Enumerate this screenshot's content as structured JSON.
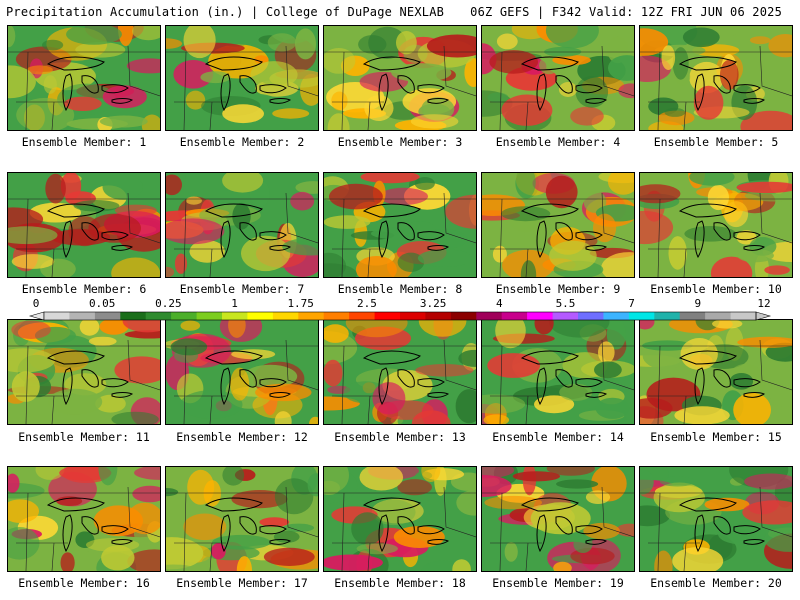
{
  "header": {
    "left": "Precipitation Accumulation (in.) | College of DuPage NEXLAB",
    "right": "06Z GEFS | F342 Valid: 12Z FRI JUN 06 2025"
  },
  "panels": [
    {
      "label": "Ensemble Member: 1"
    },
    {
      "label": "Ensemble Member: 2"
    },
    {
      "label": "Ensemble Member: 3"
    },
    {
      "label": "Ensemble Member: 4"
    },
    {
      "label": "Ensemble Member: 5"
    },
    {
      "label": "Ensemble Member: 6"
    },
    {
      "label": "Ensemble Member: 7"
    },
    {
      "label": "Ensemble Member: 8"
    },
    {
      "label": "Ensemble Member: 9"
    },
    {
      "label": "Ensemble Member: 10"
    },
    {
      "label": "Ensemble Member: 11"
    },
    {
      "label": "Ensemble Member: 12"
    },
    {
      "label": "Ensemble Member: 13"
    },
    {
      "label": "Ensemble Member: 14"
    },
    {
      "label": "Ensemble Member: 15"
    },
    {
      "label": "Ensemble Member: 16"
    },
    {
      "label": "Ensemble Member: 17"
    },
    {
      "label": "Ensemble Member: 18"
    },
    {
      "label": "Ensemble Member: 19"
    },
    {
      "label": "Ensemble Member: 20"
    }
  ],
  "legend": {
    "ticks": [
      "0",
      "0.05",
      "0.25",
      "1",
      "1.75",
      "2.5",
      "3.25",
      "4",
      "5.5",
      "7",
      "9",
      "12"
    ],
    "colors": [
      "#d8d8d8",
      "#b4b4b4",
      "#8c8c8c",
      "#1a6e1a",
      "#2e8b2e",
      "#4caf2a",
      "#7ccd1e",
      "#c8e61e",
      "#ffff00",
      "#ffd700",
      "#ffa500",
      "#ff7f00",
      "#ff4500",
      "#ff0000",
      "#dc0000",
      "#b40000",
      "#8b0000",
      "#a0005a",
      "#c8008c",
      "#ff00ff",
      "#b45aff",
      "#6e6eff",
      "#3cb4ff",
      "#00e6e6",
      "#20b2aa",
      "#808080",
      "#a9a9a9",
      "#c8c8c8"
    ]
  }
}
